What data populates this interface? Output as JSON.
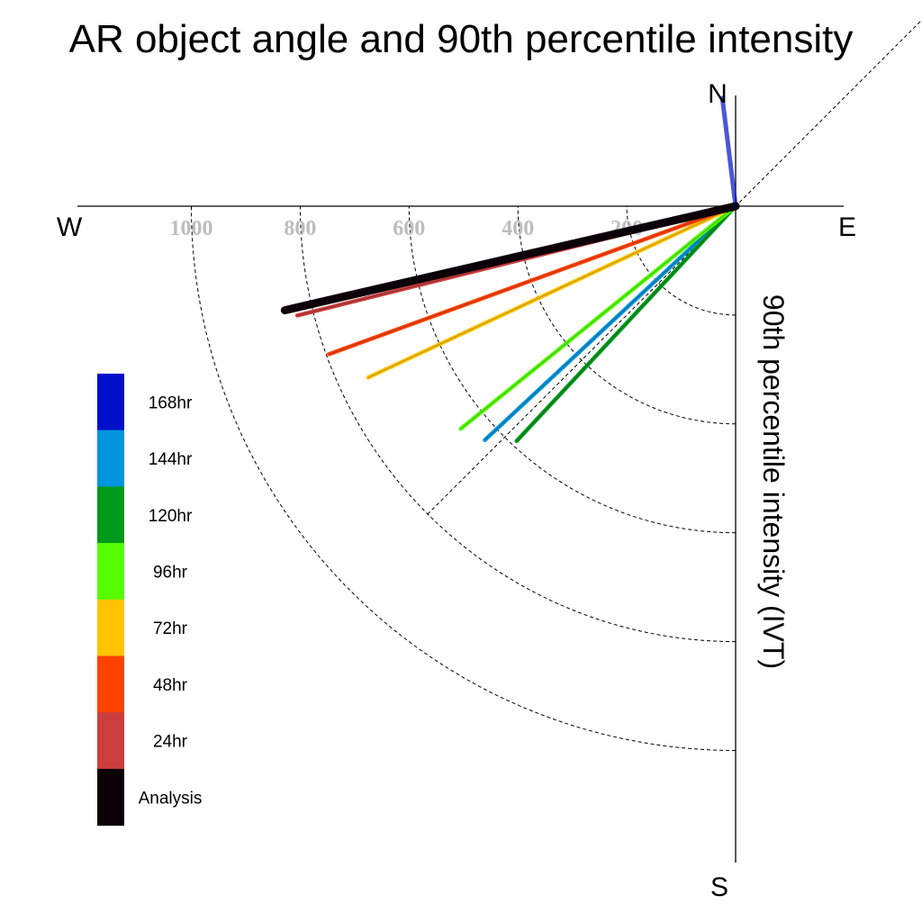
{
  "chart_data": {
    "type": "polar-line",
    "title": "AR object angle and 90th percentile intensity",
    "radial_label": "90th percentile intensity (IVT)",
    "directions": {
      "north": "N",
      "south": "S",
      "east": "E",
      "west": "W"
    },
    "radial_ticks": [
      200,
      400,
      600,
      800,
      1000
    ],
    "radial_tick_labels": [
      "200",
      "400",
      "600",
      "800",
      "1000"
    ],
    "radial_max": 1200,
    "angle_convention": "degrees clockwise from north",
    "reference_line_angle": 45,
    "series": [
      {
        "name": "168hr",
        "color": "#0010c8",
        "angle": 353,
        "intensity": 200
      },
      {
        "name": "144hr",
        "color": "#0095dd",
        "angle": 227,
        "intensity": 630
      },
      {
        "name": "120hr",
        "color": "#009a1b",
        "angle": 223,
        "intensity": 590
      },
      {
        "name": "96hr",
        "color": "#55ff00",
        "angle": 231,
        "intensity": 650
      },
      {
        "name": "72hr",
        "color": "#ffc400",
        "angle": 245,
        "intensity": 745
      },
      {
        "name": "48hr",
        "color": "#ff4200",
        "angle": 250,
        "intensity": 795
      },
      {
        "name": "24hr",
        "color": "#cc3e3e",
        "angle": 256,
        "intensity": 830
      },
      {
        "name": "Analysis",
        "color": "#0c0008",
        "angle": 257,
        "intensity": 850
      }
    ]
  }
}
